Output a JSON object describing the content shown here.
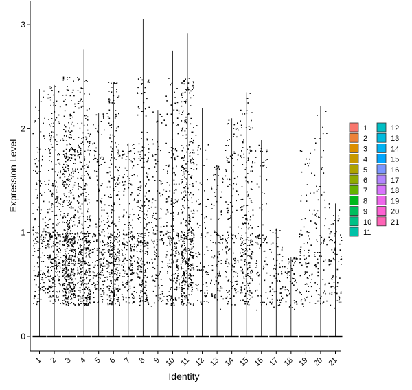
{
  "chart_data": {
    "type": "violin",
    "xlabel": "Identity",
    "ylabel": "Expression Level",
    "categories": [
      "1",
      "2",
      "3",
      "4",
      "5",
      "6",
      "7",
      "8",
      "9",
      "10",
      "11",
      "12",
      "13",
      "14",
      "15",
      "16",
      "17",
      "18",
      "19",
      "20",
      "21"
    ],
    "yticks": [
      0,
      1,
      2,
      3
    ],
    "ylim": [
      -0.12,
      3.08
    ],
    "max_values": [
      2.38,
      2.42,
      3.06,
      2.76,
      2.15,
      2.45,
      1.86,
      3.06,
      2.18,
      2.75,
      2.92,
      2.2,
      1.65,
      2.1,
      2.35,
      1.89,
      1.04,
      0.76,
      1.82,
      2.22,
      1.28
    ],
    "expressing_density": [
      0.25,
      0.55,
      1.0,
      0.75,
      0.3,
      0.6,
      0.35,
      0.45,
      0.2,
      0.4,
      0.8,
      0.12,
      0.15,
      0.25,
      0.4,
      0.12,
      0.08,
      0.06,
      0.12,
      0.12,
      0.1
    ],
    "grid": false,
    "legend": {
      "position": "right",
      "entries": [
        {
          "label": "1",
          "color": "#F8766D"
        },
        {
          "label": "2",
          "color": "#EC8239"
        },
        {
          "label": "3",
          "color": "#DB8E00"
        },
        {
          "label": "4",
          "color": "#C79800"
        },
        {
          "label": "5",
          "color": "#AEA200"
        },
        {
          "label": "6",
          "color": "#8FAA00"
        },
        {
          "label": "7",
          "color": "#64B200"
        },
        {
          "label": "8",
          "color": "#00B81B"
        },
        {
          "label": "9",
          "color": "#00BD5C"
        },
        {
          "label": "10",
          "color": "#00C085"
        },
        {
          "label": "11",
          "color": "#00C1A7"
        },
        {
          "label": "12",
          "color": "#00BFC4"
        },
        {
          "label": "13",
          "color": "#00BADE"
        },
        {
          "label": "14",
          "color": "#00B2F3"
        },
        {
          "label": "15",
          "color": "#00A6FF"
        },
        {
          "label": "16",
          "color": "#7C96FF"
        },
        {
          "label": "17",
          "color": "#B385FF"
        },
        {
          "label": "18",
          "color": "#D874FD"
        },
        {
          "label": "19",
          "color": "#EF67EB"
        },
        {
          "label": "20",
          "color": "#FD61D3"
        },
        {
          "label": "21",
          "color": "#FF63B6"
        }
      ]
    }
  }
}
